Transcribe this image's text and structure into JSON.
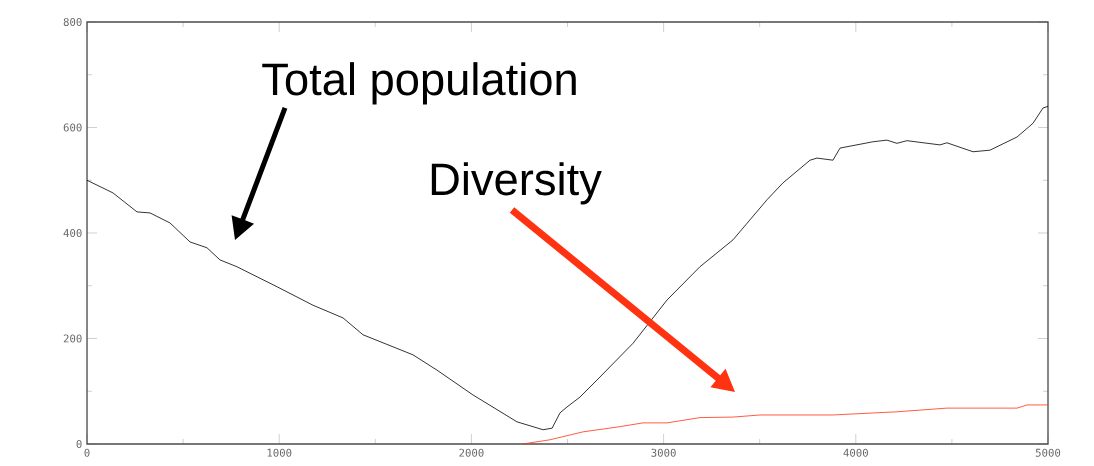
{
  "chart_data": {
    "type": "line",
    "xlim": [
      0,
      5000
    ],
    "ylim": [
      0,
      800
    ],
    "xticks": [
      0,
      1000,
      2000,
      3000,
      4000,
      5000
    ],
    "yticks": [
      0,
      200,
      400,
      600,
      800
    ],
    "grid": false,
    "marker": "none",
    "line_style": "solid",
    "series": [
      {
        "color": "#000000",
        "x": [
          0,
          135,
          260,
          328,
          432,
          536,
          624,
          692,
          780,
          989,
          1176,
          1332,
          1436,
          1696,
          1821,
          2008,
          2237,
          2373,
          2420,
          2461,
          2497,
          2565,
          2669,
          2841,
          3018,
          3189,
          3361,
          3538,
          3621,
          3762,
          3798,
          3881,
          3918,
          4090,
          4162,
          4214,
          4266,
          4438,
          4474,
          4610,
          4698,
          4839,
          4922,
          4974,
          5000
        ],
        "values": [
          500,
          476,
          440,
          438,
          419,
          383,
          372,
          349,
          336,
          298,
          263,
          239,
          207,
          169,
          140,
          93,
          42,
          27,
          30,
          59,
          70,
          89,
          127,
          191,
          273,
          336,
          387,
          463,
          495,
          538,
          542,
          538,
          561,
          573,
          576,
          570,
          575,
          567,
          571,
          554,
          557,
          582,
          608,
          637,
          640
        ]
      },
      {
        "color": "#ff3311",
        "x": [
          2268,
          2409,
          2581,
          2758,
          2893,
          3018,
          3189,
          3361,
          3502,
          3881,
          4214,
          4474,
          4839,
          4891,
          5000
        ],
        "values": [
          0,
          8,
          23,
          32,
          40,
          40,
          50,
          51,
          55,
          55,
          61,
          68,
          68,
          74,
          74
        ]
      }
    ],
    "annotations": [
      "Total population",
      "Diversity"
    ]
  }
}
